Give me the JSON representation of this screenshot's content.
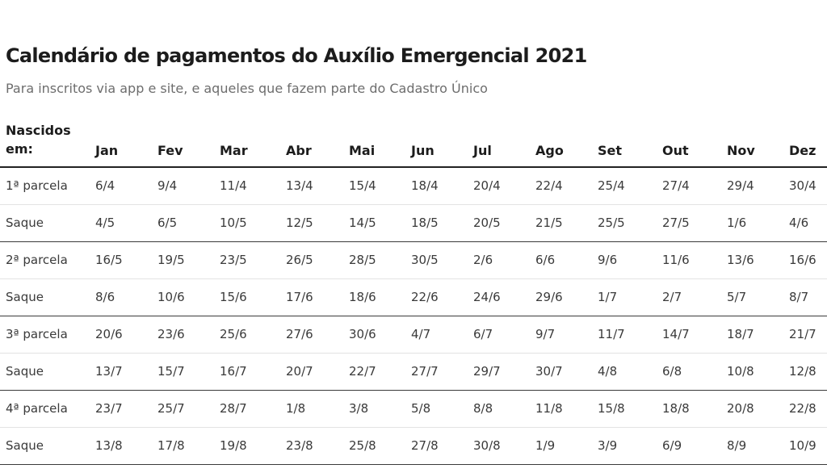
{
  "title": "Calendário de pagamentos do Auxílio Emergencial 2021",
  "subtitle": "Para inscritos via app e site, e aqueles que fazem parte do Cadastro Único",
  "table": {
    "corner_label_line1": "Nascidos",
    "corner_label_line2": "em:",
    "months": [
      "Jan",
      "Fev",
      "Mar",
      "Abr",
      "Mai",
      "Jun",
      "Jul",
      "Ago",
      "Set",
      "Out",
      "Nov",
      "Dez"
    ],
    "rows": [
      {
        "label": "1ª parcela",
        "values": [
          "6/4",
          "9/4",
          "11/4",
          "13/4",
          "15/4",
          "18/4",
          "20/4",
          "22/4",
          "25/4",
          "27/4",
          "29/4",
          "30/4"
        ]
      },
      {
        "label": "Saque",
        "values": [
          "4/5",
          "6/5",
          "10/5",
          "12/5",
          "14/5",
          "18/5",
          "20/5",
          "21/5",
          "25/5",
          "27/5",
          "1/6",
          "4/6"
        ]
      },
      {
        "label": "2ª parcela",
        "values": [
          "16/5",
          "19/5",
          "23/5",
          "26/5",
          "28/5",
          "30/5",
          "2/6",
          "6/6",
          "9/6",
          "11/6",
          "13/6",
          "16/6"
        ]
      },
      {
        "label": "Saque",
        "values": [
          "8/6",
          "10/6",
          "15/6",
          "17/6",
          "18/6",
          "22/6",
          "24/6",
          "29/6",
          "1/7",
          "2/7",
          "5/7",
          "8/7"
        ]
      },
      {
        "label": "3ª parcela",
        "values": [
          "20/6",
          "23/6",
          "25/6",
          "27/6",
          "30/6",
          "4/7",
          "6/7",
          "9/7",
          "11/7",
          "14/7",
          "18/7",
          "21/7"
        ]
      },
      {
        "label": "Saque",
        "values": [
          "13/7",
          "15/7",
          "16/7",
          "20/7",
          "22/7",
          "27/7",
          "29/7",
          "30/7",
          "4/8",
          "6/8",
          "10/8",
          "12/8"
        ]
      },
      {
        "label": "4ª parcela",
        "values": [
          "23/7",
          "25/7",
          "28/7",
          "1/8",
          "3/8",
          "5/8",
          "8/8",
          "11/8",
          "15/8",
          "18/8",
          "20/8",
          "22/8"
        ]
      },
      {
        "label": "Saque",
        "values": [
          "13/8",
          "17/8",
          "19/8",
          "23/8",
          "25/8",
          "27/8",
          "30/8",
          "1/9",
          "3/9",
          "6/9",
          "8/9",
          "10/9"
        ]
      }
    ]
  }
}
